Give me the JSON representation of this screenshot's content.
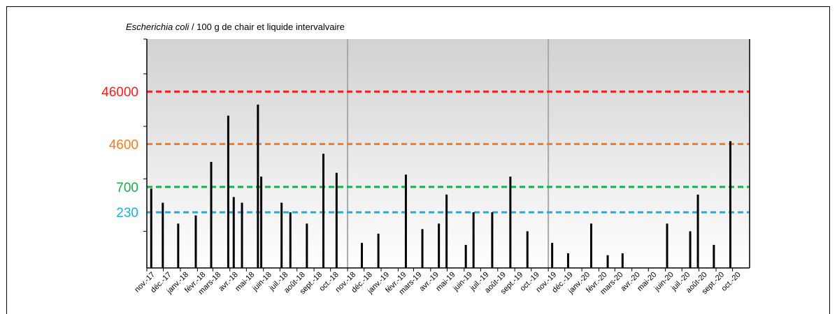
{
  "chart_data": {
    "type": "bar",
    "title_italic": "Escherichia coli",
    "title_rest": " / 100 g de chair et liquide intervalvaire",
    "x_start": "2017-11-01",
    "x_end": "2020-11-01",
    "month_labels": [
      "nov.-17",
      "déc.-17",
      "janv.-18",
      "févr.-18",
      "mars-18",
      "avr.-18",
      "mai-18",
      "juin-18",
      "juil.-18",
      "août-18",
      "sept.-18",
      "oct.-18",
      "nov.-18",
      "déc.-18",
      "janv.-19",
      "févr.-19",
      "mars-19",
      "avr.-19",
      "mai-19",
      "juin-19",
      "juil.-19",
      "août-19",
      "sept.-19",
      "oct.-19",
      "nov.-19",
      "déc.-19",
      "janv.-20",
      "févr.-20",
      "mars-20",
      "avr.-20",
      "mai-20",
      "juin-20",
      "juil.-20",
      "août-20",
      "sept.-20",
      "oct.-20"
    ],
    "y_scale": "log",
    "y_range": [
      20,
      460000
    ],
    "thresholds": [
      {
        "label": "46000",
        "value": 46000,
        "color": "#ff1a1a"
      },
      {
        "label": "4600",
        "value": 4600,
        "color": "#f97a1f"
      },
      {
        "label": "700",
        "value": 700,
        "color": "#1aae4a"
      },
      {
        "label": "230",
        "value": 230,
        "color": "#1cb0e0"
      }
    ],
    "year_separators": [
      "2018-11-01",
      "2019-11-01"
    ],
    "points": [
      {
        "date": "2017-11-09",
        "value": 650
      },
      {
        "date": "2017-11-30",
        "value": 350
      },
      {
        "date": "2017-12-28",
        "value": 140
      },
      {
        "date": "2018-01-29",
        "value": 200
      },
      {
        "date": "2018-02-26",
        "value": 2100
      },
      {
        "date": "2018-03-29",
        "value": 16000
      },
      {
        "date": "2018-04-08",
        "value": 450
      },
      {
        "date": "2018-04-23",
        "value": 350
      },
      {
        "date": "2018-05-22",
        "value": 26000
      },
      {
        "date": "2018-05-28",
        "value": 1100
      },
      {
        "date": "2018-07-04",
        "value": 350
      },
      {
        "date": "2018-07-20",
        "value": 230
      },
      {
        "date": "2018-08-19",
        "value": 140
      },
      {
        "date": "2018-09-18",
        "value": 3000
      },
      {
        "date": "2018-10-12",
        "value": 1300
      },
      {
        "date": "2018-11-27",
        "value": 60
      },
      {
        "date": "2018-12-27",
        "value": 90
      },
      {
        "date": "2019-02-15",
        "value": 1200
      },
      {
        "date": "2019-03-17",
        "value": 110
      },
      {
        "date": "2019-04-16",
        "value": 140
      },
      {
        "date": "2019-04-30",
        "value": 500
      },
      {
        "date": "2019-06-04",
        "value": 55
      },
      {
        "date": "2019-06-18",
        "value": 230
      },
      {
        "date": "2019-07-22",
        "value": 230
      },
      {
        "date": "2019-08-24",
        "value": 1100
      },
      {
        "date": "2019-09-24",
        "value": 100
      },
      {
        "date": "2019-11-08",
        "value": 60
      },
      {
        "date": "2019-12-07",
        "value": 38
      },
      {
        "date": "2020-01-18",
        "value": 140
      },
      {
        "date": "2020-02-17",
        "value": 35
      },
      {
        "date": "2020-03-15",
        "value": 38
      },
      {
        "date": "2020-06-04",
        "value": 140
      },
      {
        "date": "2020-07-16",
        "value": 100
      },
      {
        "date": "2020-07-30",
        "value": 500
      },
      {
        "date": "2020-08-28",
        "value": 55
      },
      {
        "date": "2020-09-27",
        "value": 5200
      }
    ]
  }
}
